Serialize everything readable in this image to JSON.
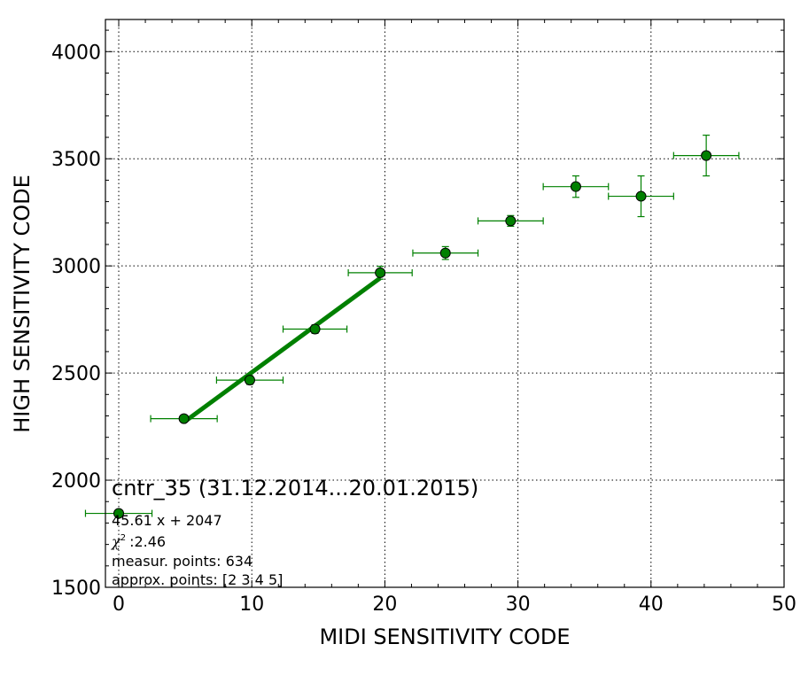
{
  "chart_data": {
    "type": "scatter",
    "xlabel": "MIDI SENSITIVITY CODE",
    "ylabel": "HIGH SENSITIVITY CODE",
    "xlim": [
      -1,
      50
    ],
    "ylim": [
      1500,
      4150
    ],
    "xticks": [
      "0",
      "10",
      "20",
      "30",
      "40",
      "50"
    ],
    "yticks": [
      "1500",
      "2000",
      "2500",
      "3000",
      "3500",
      "4000"
    ],
    "grid": true,
    "points": [
      {
        "x": 0,
        "y": 1845,
        "xerr": 2.5,
        "yerr": 0
      },
      {
        "x": 4.9,
        "y": 2287,
        "xerr": 2.5,
        "yerr": 10
      },
      {
        "x": 9.85,
        "y": 2467,
        "xerr": 2.5,
        "yerr": 20
      },
      {
        "x": 14.75,
        "y": 2705,
        "xerr": 2.4,
        "yerr": 20
      },
      {
        "x": 19.65,
        "y": 2968,
        "xerr": 2.4,
        "yerr": 30
      },
      {
        "x": 24.55,
        "y": 3060,
        "xerr": 2.45,
        "yerr": 30
      },
      {
        "x": 29.45,
        "y": 3210,
        "xerr": 2.45,
        "yerr": 25
      },
      {
        "x": 34.35,
        "y": 3370,
        "xerr": 2.45,
        "yerr": 50
      },
      {
        "x": 39.25,
        "y": 3325,
        "xerr": 2.45,
        "yerr": 95
      },
      {
        "x": 44.15,
        "y": 3515,
        "xerr": 2.45,
        "yerr": 95
      }
    ],
    "fit": {
      "slope": 45.61,
      "intercept": 2047,
      "x_range": [
        4.9,
        19.65
      ]
    },
    "colors": {
      "points": "#008000",
      "error_bars": "#008000",
      "fit_line": "#008000",
      "marker_edge": "#000000"
    },
    "annotation": {
      "title": "cntr_35 (31.12.2014...20.01.2015)",
      "equation": "45.61 x + 2047",
      "chi_symbol": "χ",
      "chi_power": "2",
      "chi_value": ":2.46",
      "measur_points": "measur. points: 634",
      "approx_points": "approx. points: [2 3 4 5]"
    }
  }
}
